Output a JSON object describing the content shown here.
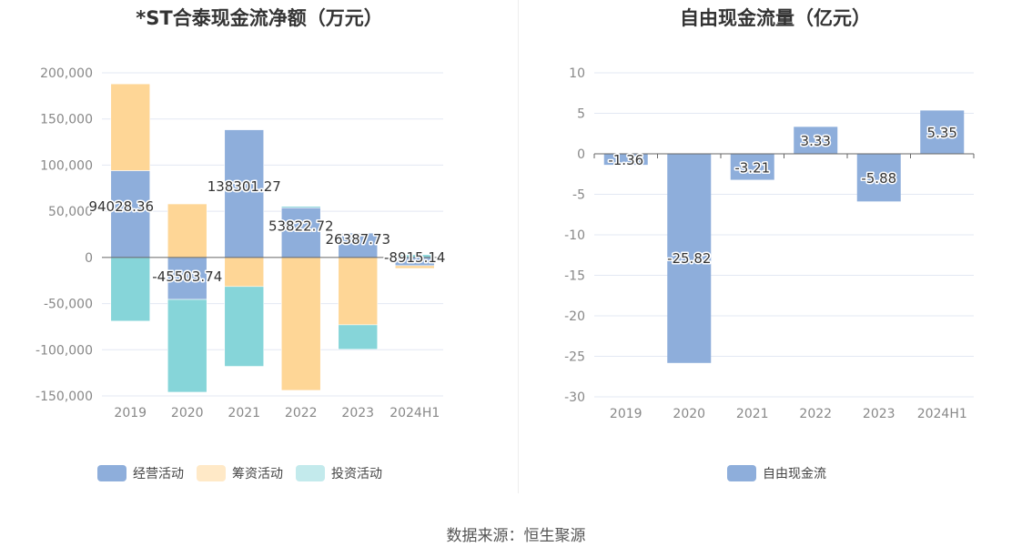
{
  "colors": {
    "operating": "#8eaedb",
    "financing": "#fed696",
    "investing": "#86d5d9",
    "operating_legend": "#8eaedb",
    "financing_legend": "#ffe9c7",
    "investing_legend": "#c3eaec",
    "fcf": "#8eaedb"
  },
  "source": "数据来源：恒生聚源",
  "chart_data": [
    {
      "type": "bar",
      "stacked": true,
      "title": "*ST合泰现金流净额（万元）",
      "categories": [
        "2019",
        "2020",
        "2021",
        "2022",
        "2023",
        "2024H1"
      ],
      "ylim": [
        -150000,
        200000
      ],
      "yticks": [
        200000,
        150000,
        100000,
        50000,
        0,
        -50000,
        -100000,
        -150000
      ],
      "ytick_labels": [
        "200,000",
        "150,000",
        "100,000",
        "50,000",
        "0",
        "-50,000",
        "-100,000",
        "-150,000"
      ],
      "grid": true,
      "legend_position": "bottom",
      "series": [
        {
          "key": "operating",
          "name": "经营活动",
          "values": [
            94028.36,
            -45503.74,
            138301.27,
            53822.72,
            26387.73,
            -8915.14
          ],
          "labels": [
            "94028.36",
            "-45503.74",
            "138301.27",
            "53822.72",
            "26387.73",
            "-8915.14"
          ]
        },
        {
          "key": "financing",
          "name": "筹资活动",
          "values": [
            94000,
            58000,
            -31500,
            -144000,
            -73000,
            -3000
          ]
        },
        {
          "key": "investing",
          "name": "投资活动",
          "values": [
            -69000,
            -100500,
            -86500,
            1500,
            -26500,
            3000
          ]
        }
      ]
    },
    {
      "type": "bar",
      "title": "自由现金流量（亿元）",
      "categories": [
        "2019",
        "2020",
        "2021",
        "2022",
        "2023",
        "2024H1"
      ],
      "ylim": [
        -30,
        10
      ],
      "yticks": [
        10,
        5,
        0,
        -5,
        -10,
        -15,
        -20,
        -25,
        -30
      ],
      "ytick_labels": [
        "10",
        "5",
        "0",
        "-5",
        "-10",
        "-15",
        "-20",
        "-25",
        "-30"
      ],
      "grid": true,
      "legend_position": "bottom",
      "series": [
        {
          "key": "fcf",
          "name": "自由现金流",
          "values": [
            -1.36,
            -25.82,
            -3.21,
            3.33,
            -5.88,
            5.35
          ],
          "labels": [
            "-1.36",
            "-25.82",
            "-3.21",
            "3.33",
            "-5.88",
            "5.35"
          ]
        }
      ]
    }
  ]
}
